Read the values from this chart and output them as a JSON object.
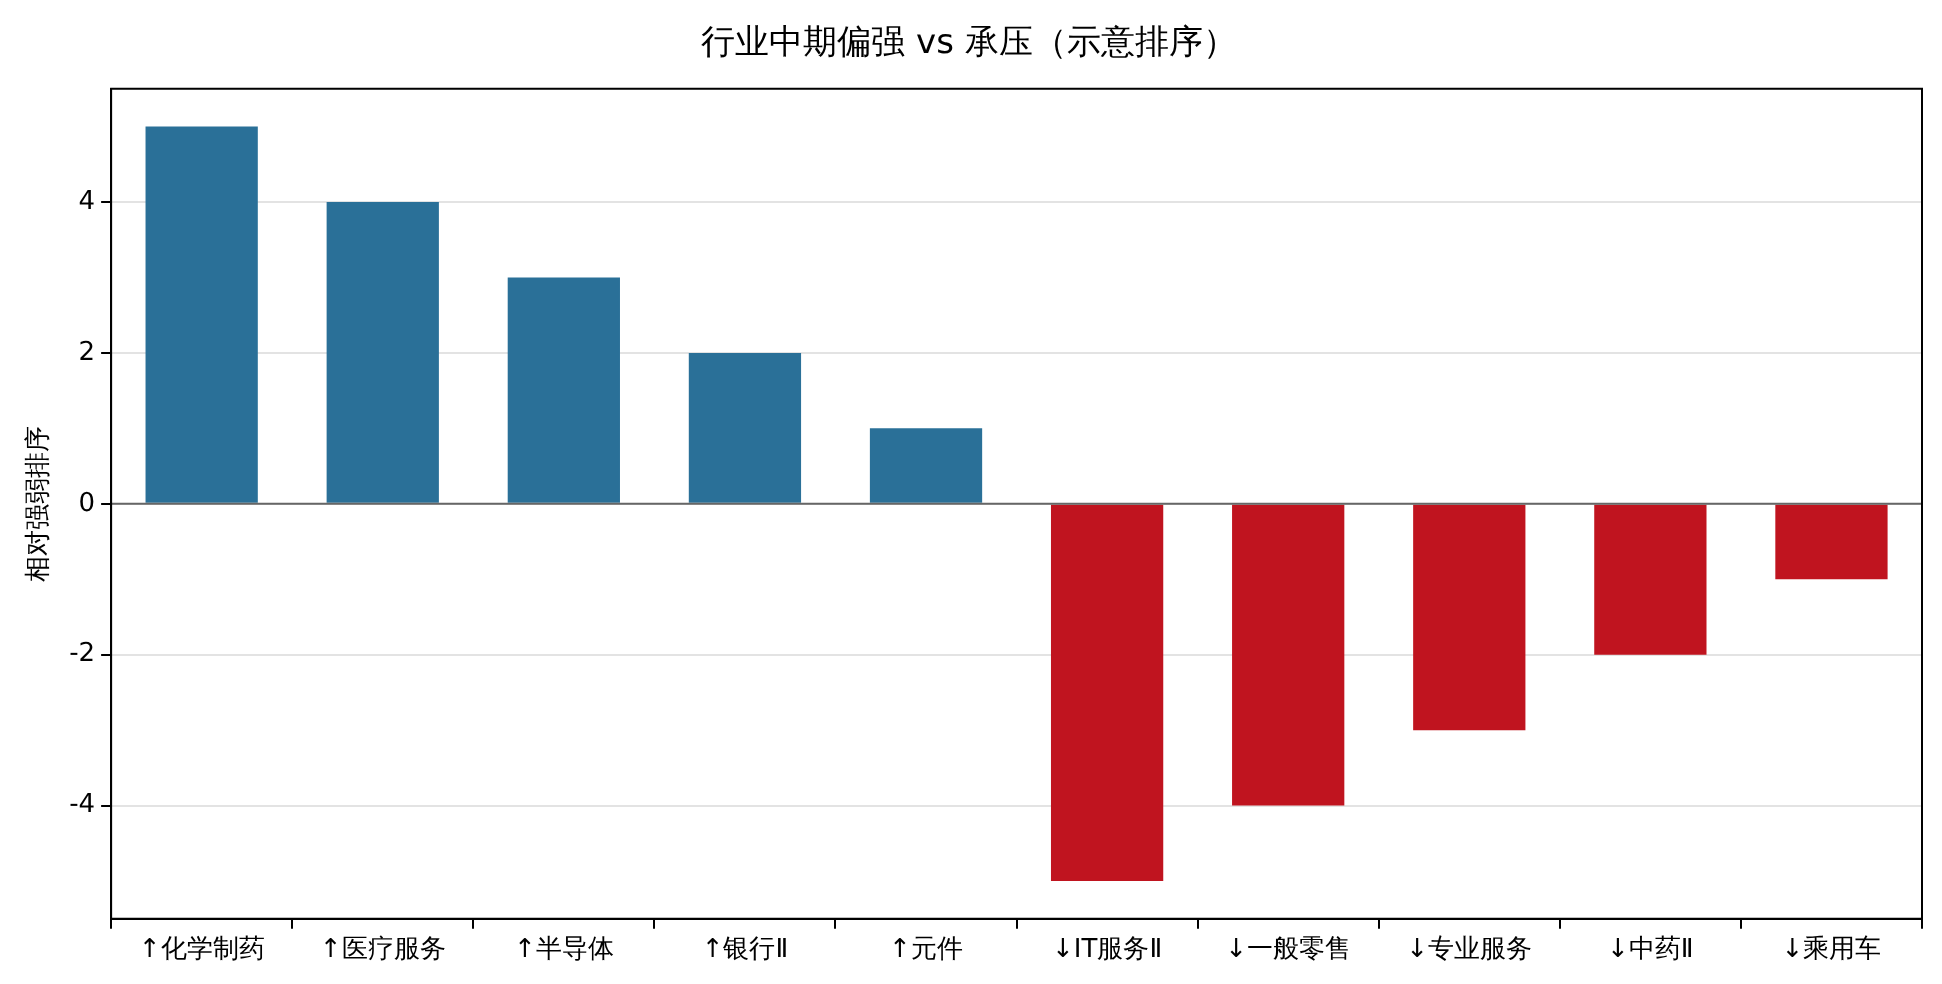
{
  "chart_data": {
    "type": "bar",
    "title": "行业中期偏强 vs 承压（示意排序）",
    "ylabel": "相对强弱排序",
    "categories": [
      "↑化学制药",
      "↑医疗服务",
      "↑半导体",
      "↑银行Ⅱ",
      "↑元件",
      "↓IT服务Ⅱ",
      "↓一般零售",
      "↓专业服务",
      "↓中药Ⅱ",
      "↓乘用车"
    ],
    "values": [
      5,
      4,
      3,
      2,
      1,
      -5,
      -4,
      -3,
      -2,
      -1
    ],
    "colors": [
      "#2a7098",
      "#2a7098",
      "#2a7098",
      "#2a7098",
      "#2a7098",
      "#c0141f",
      "#c0141f",
      "#c0141f",
      "#c0141f",
      "#c0141f"
    ],
    "ylim": [
      -5.5,
      5.5
    ],
    "yticks": [
      -4,
      -2,
      0,
      2,
      4
    ],
    "grid": "y",
    "ref_lines": [
      {
        "axis": "y",
        "value": 0,
        "color": "#666666"
      }
    ]
  }
}
